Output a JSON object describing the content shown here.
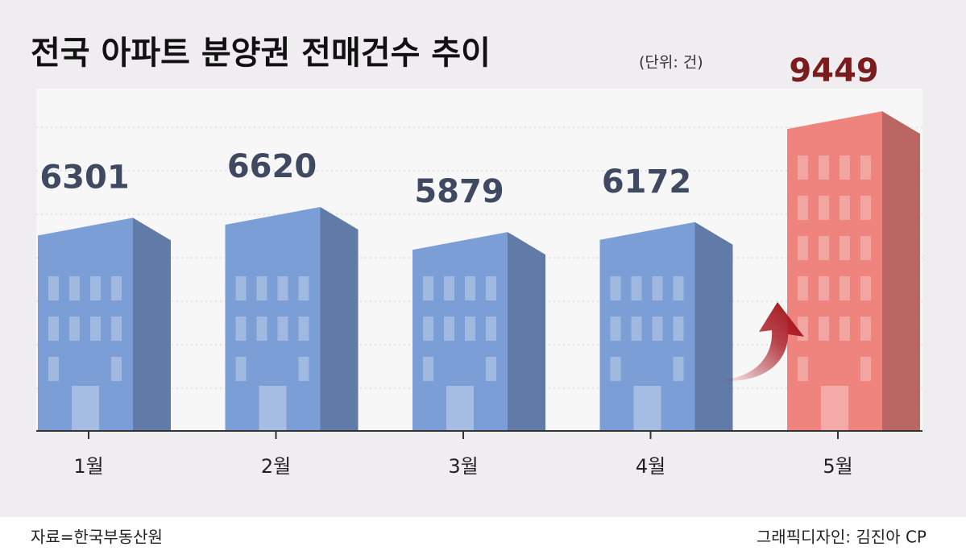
{
  "chart_data": {
    "type": "bar",
    "title": "전국 아파트 분양권 전매건수 추이",
    "unit": "(단위: 건)",
    "categories": [
      "1월",
      "2월",
      "3월",
      "4월",
      "5월"
    ],
    "values": [
      6301,
      6620,
      5879,
      6172,
      9449
    ],
    "colors": [
      "#7b9ed6",
      "#7b9ed6",
      "#7b9ed6",
      "#7b9ed6",
      "#ef837e"
    ],
    "label_colors": [
      "#3f4a62",
      "#3f4a62",
      "#3f4a62",
      "#3f4a62",
      "#7a1b1e"
    ],
    "ylim": [
      0,
      10000
    ],
    "source": "자료=한국부동산원",
    "credit": "그래픽디자인: 김진아 CP"
  }
}
